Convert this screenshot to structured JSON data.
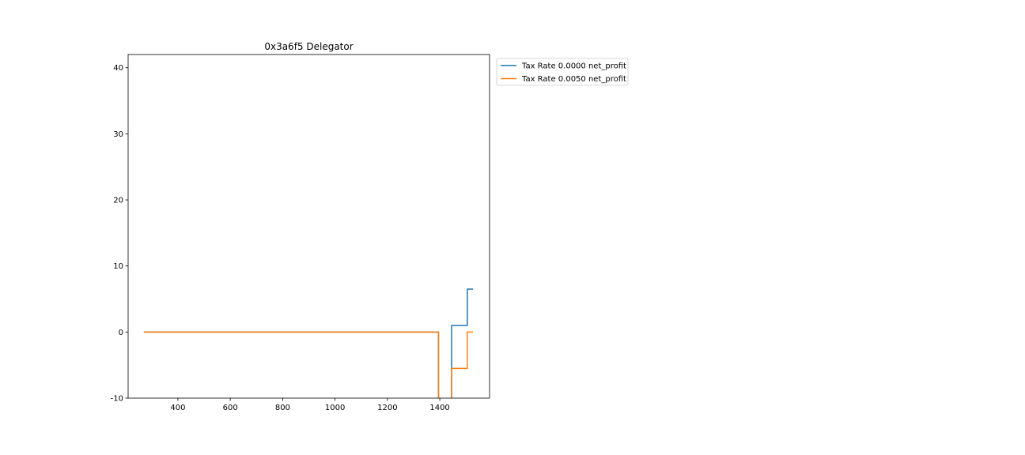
{
  "chart_data": {
    "type": "line",
    "title": "0x3a6f5 Delegator",
    "xlabel": "",
    "ylabel": "",
    "xlim": [
      210,
      1590
    ],
    "ylim": [
      -10,
      42
    ],
    "x_ticks": [
      400,
      600,
      800,
      1000,
      1200,
      1400
    ],
    "y_ticks": [
      -10,
      0,
      10,
      20,
      30,
      40
    ],
    "grid": false,
    "legend_position": "outside-top-right",
    "series": [
      {
        "name": "Tax Rate 0.0000 net_profit",
        "color": "#1f77b4",
        "points": [
          [
            270,
            0
          ],
          [
            1395,
            0
          ],
          [
            1395,
            -11
          ],
          [
            1445,
            -11
          ],
          [
            1445,
            1
          ],
          [
            1505,
            1
          ],
          [
            1505,
            6.5
          ],
          [
            1527,
            6.5
          ]
        ]
      },
      {
        "name": "Tax Rate 0.0050 net_profit",
        "color": "#ff7f0e",
        "points": [
          [
            270,
            0
          ],
          [
            1395,
            0
          ],
          [
            1395,
            -11
          ],
          [
            1445,
            -11
          ],
          [
            1445,
            -5.5
          ],
          [
            1505,
            -5.5
          ],
          [
            1505,
            0
          ],
          [
            1527,
            0
          ]
        ]
      }
    ]
  }
}
